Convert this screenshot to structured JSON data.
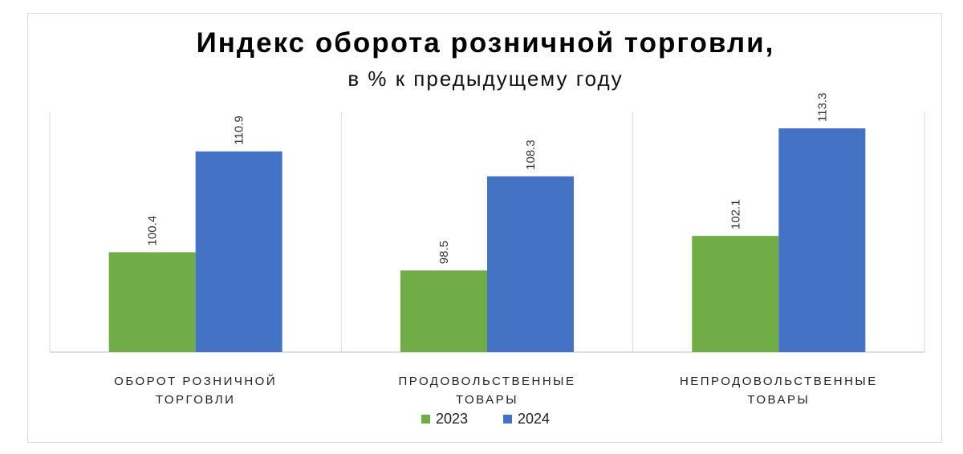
{
  "chart_data": {
    "type": "bar",
    "title": "Индекс оборота розничной торговли,",
    "subtitle": "в % к предыдущему году",
    "categories": [
      [
        "ОБОРОТ РОЗНИЧНОЙ",
        "ТОРГОВЛИ"
      ],
      [
        "ПРОДОВОЛЬСТВЕННЫЕ",
        "ТОВАРЫ"
      ],
      [
        "НЕПРОДОВОЛЬСТВЕННЫЕ",
        "ТОВАРЫ"
      ]
    ],
    "series": [
      {
        "name": "2023",
        "color": "#70AD47",
        "values": [
          100.4,
          98.5,
          102.1
        ]
      },
      {
        "name": "2024",
        "color": "#4472C4",
        "values": [
          110.9,
          108.3,
          113.3
        ]
      }
    ],
    "value_labels": [
      [
        "100.4",
        "98.5",
        "102.1"
      ],
      [
        "110.9",
        "108.3",
        "113.3"
      ]
    ],
    "ylim": [
      90,
      116
    ],
    "grid": false,
    "category_separators": true,
    "legend": "bottom"
  }
}
